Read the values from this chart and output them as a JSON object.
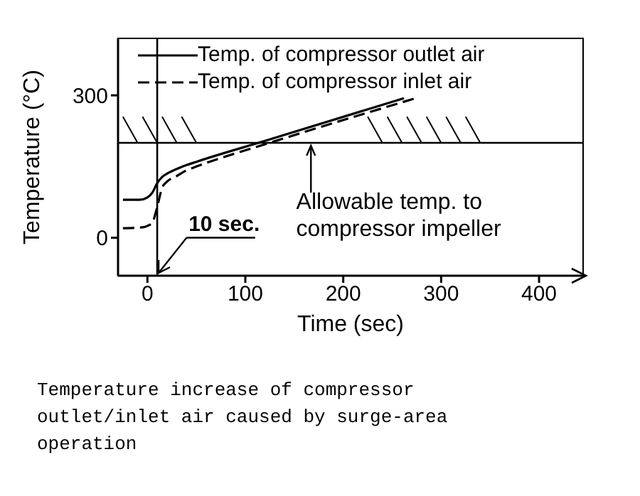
{
  "chart_data": {
    "type": "line",
    "xlabel": "Time (sec)",
    "ylabel": "Temperature (°C)",
    "series": [
      {
        "name": "Temp. of compressor outlet air",
        "color": "#000000",
        "line_style": "solid",
        "x": [
          -25,
          -8,
          0,
          5,
          10,
          15,
          20,
          30,
          40,
          50,
          120,
          262
        ],
        "values": [
          80,
          80,
          85,
          95,
          115,
          128,
          135,
          145,
          153,
          160,
          204,
          294
        ]
      },
      {
        "name": "Temp. of compressor inlet air",
        "color": "#000000",
        "line_style": "dashed",
        "x": [
          -25,
          -5,
          0,
          5,
          10,
          15,
          20,
          30,
          40,
          50,
          125,
          274
        ],
        "values": [
          20,
          22,
          25,
          32,
          65,
          105,
          118,
          130,
          142,
          150,
          200,
          294
        ]
      }
    ],
    "xlim": [
      -30,
      445
    ],
    "ylim": [
      -80,
      420
    ],
    "xticks": [
      0,
      100,
      200,
      300,
      400
    ],
    "yticks": [
      0,
      300
    ],
    "ref_lines": [
      {
        "axis": "y",
        "value": 200,
        "label": "Allowable temp. to compressor impeller",
        "color": "#000000"
      },
      {
        "axis": "x",
        "value": 10,
        "color": "#000000"
      }
    ],
    "annotations": [
      {
        "text": "10 sec.",
        "x": 10,
        "y": 0
      },
      "Temperature increase of compressor outlet/inlet air caused by surge-area operation"
    ],
    "legend": "top",
    "grid": false,
    "marker": "none"
  }
}
